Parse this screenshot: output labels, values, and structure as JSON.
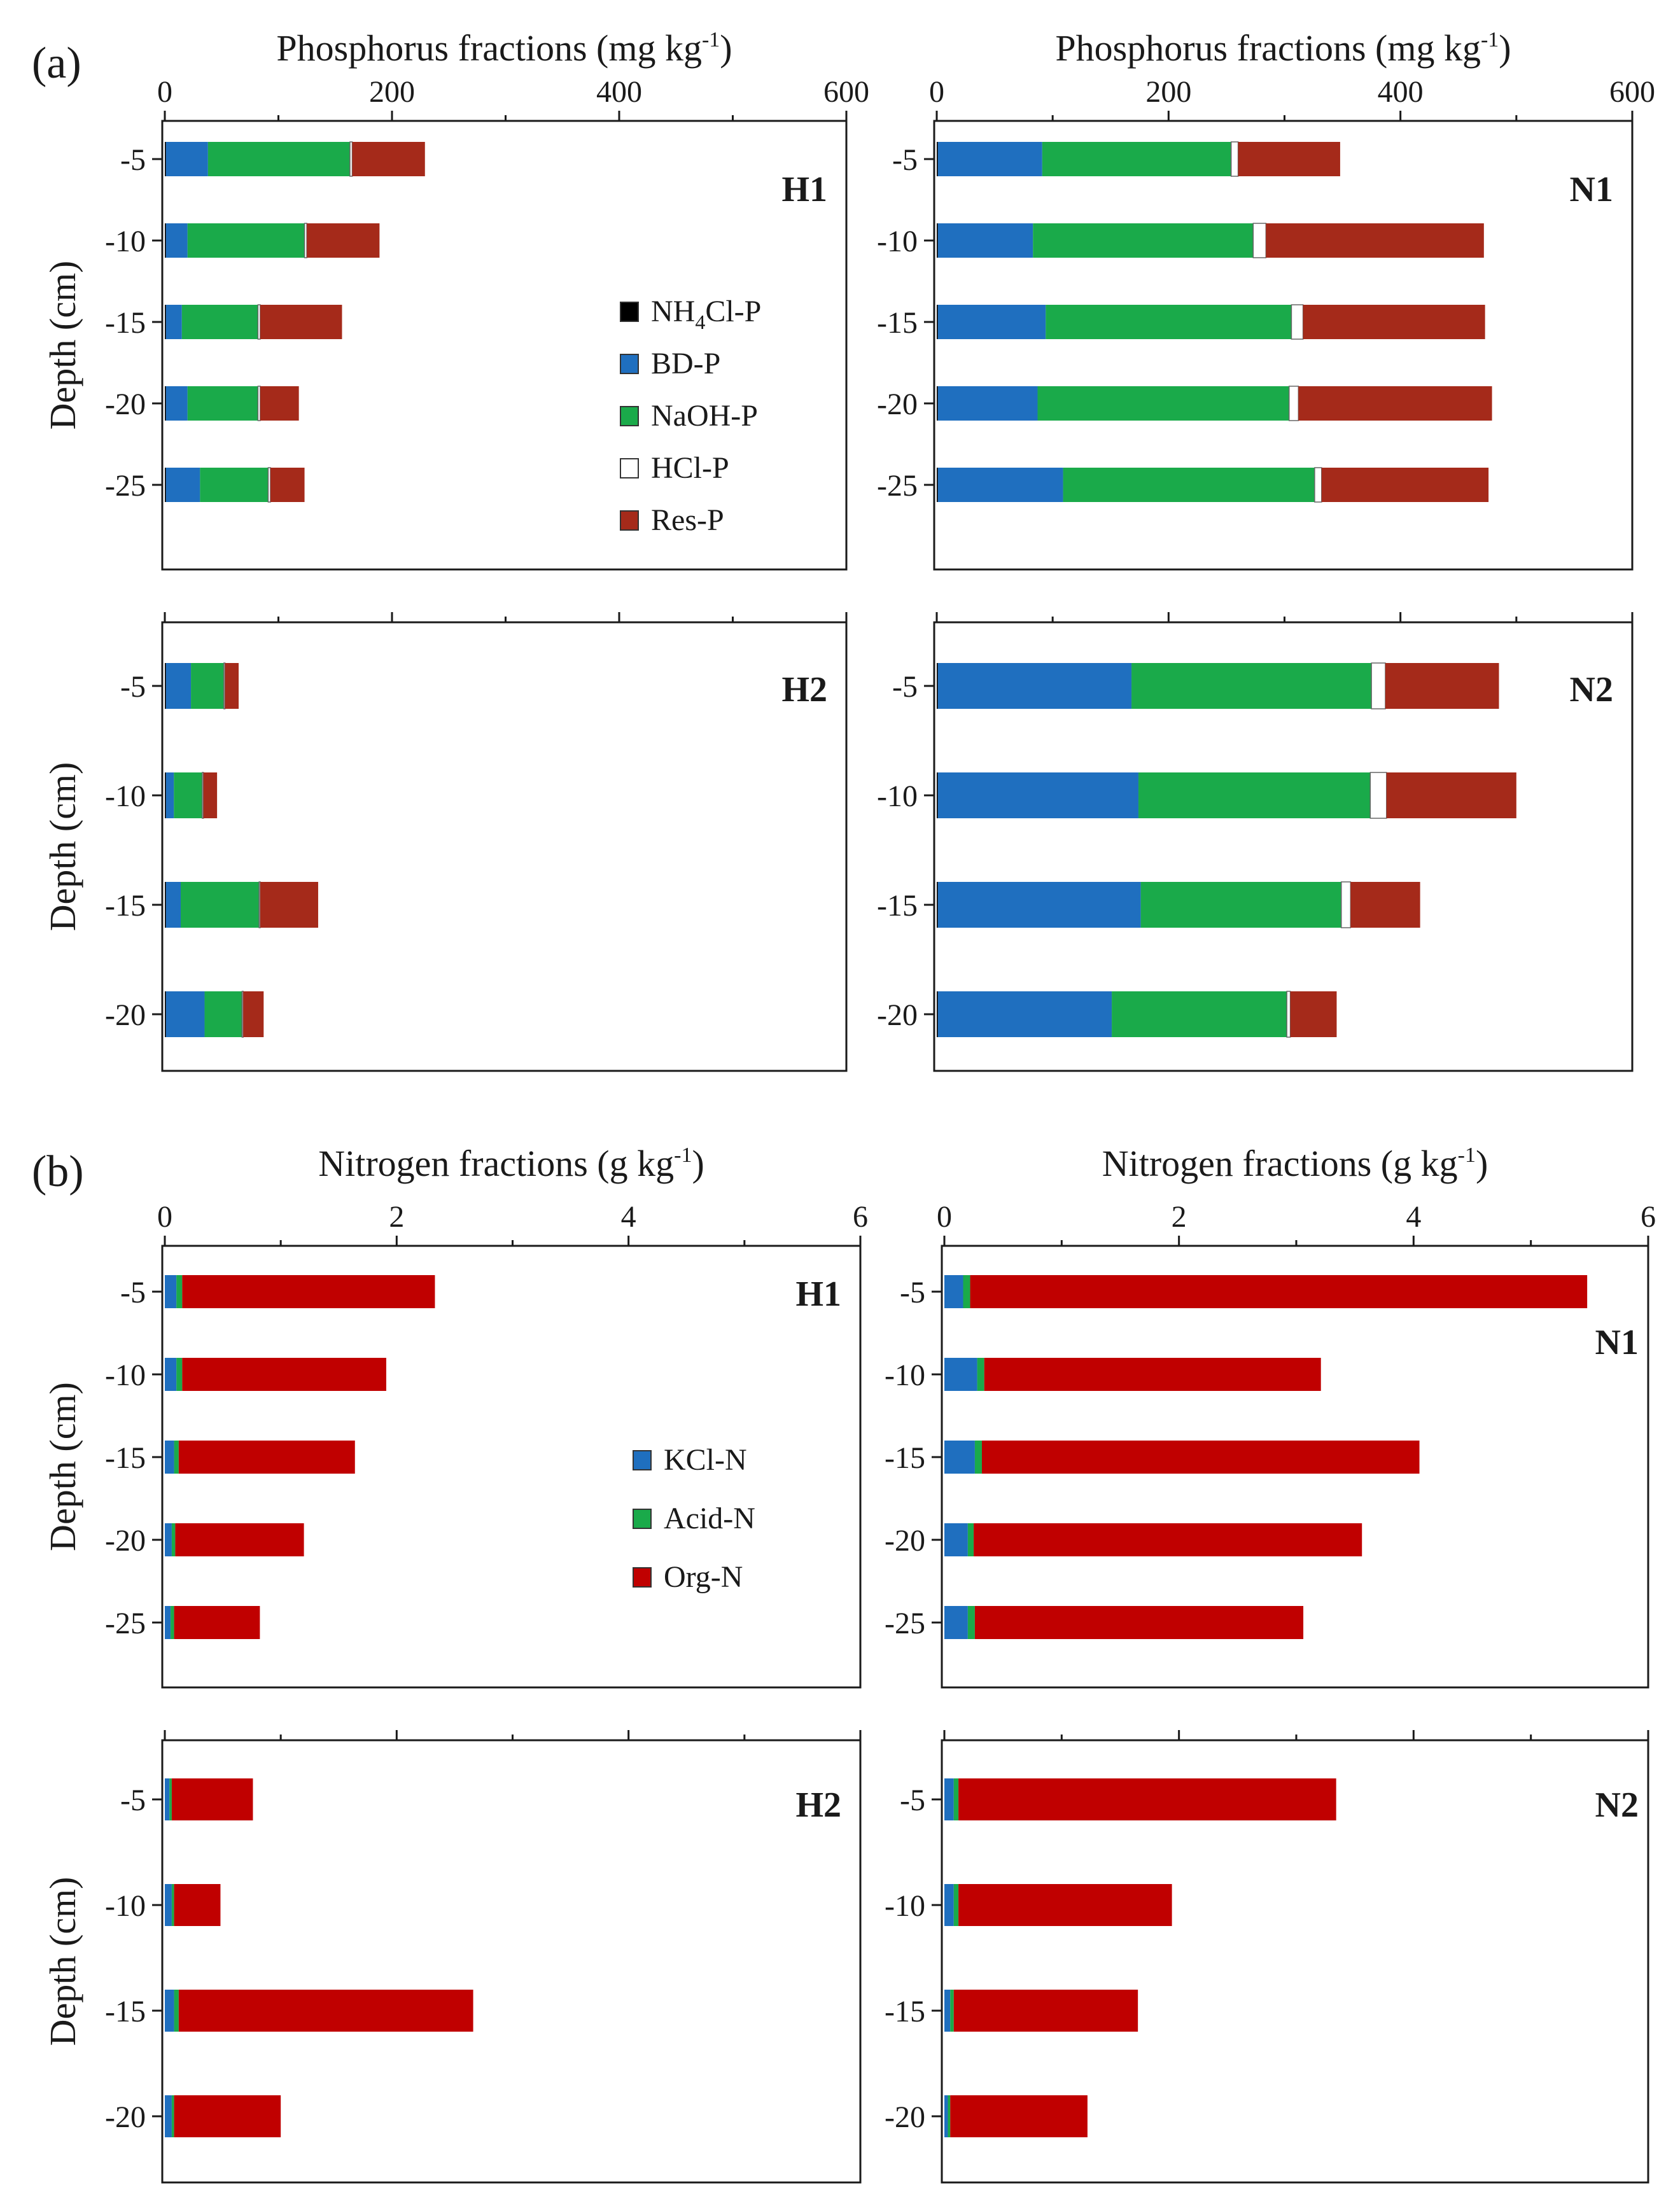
{
  "section_labels": {
    "a": "(a)",
    "b": "(b)"
  },
  "legends": {
    "phosphorus": [
      {
        "name": "NH4Cl-P",
        "main": "NH",
        "sub": "4",
        "rest": "Cl-P",
        "color": "#000000"
      },
      {
        "name": "BD-P",
        "main": "BD-P",
        "sub": "",
        "rest": "",
        "color": "#1f6fbf"
      },
      {
        "name": "NaOH-P",
        "main": "NaOH-P",
        "sub": "",
        "rest": "",
        "color": "#1aaa4a"
      },
      {
        "name": "HCl-P",
        "main": "HCl-P",
        "sub": "",
        "rest": "",
        "color": "#ffffff"
      },
      {
        "name": "Res-P",
        "main": "Res-P",
        "sub": "",
        "rest": "",
        "color": "#a52a1a"
      }
    ],
    "nitrogen": [
      {
        "name": "KCl-N",
        "main": "KCl-N",
        "sub": "",
        "rest": "",
        "color": "#1f6fbf"
      },
      {
        "name": "Acid-N",
        "main": "Acid-N",
        "sub": "",
        "rest": "",
        "color": "#1aaa4a"
      },
      {
        "name": "Org-N",
        "main": "Org-N",
        "sub": "",
        "rest": "",
        "color": "#c00000"
      }
    ]
  },
  "chart_data": [
    {
      "type": "bar",
      "id": "p-h1",
      "panel": "H1",
      "xlabel": "Phosphorus fractions (mg kg-1)",
      "xlabel_main": "Phosphorus fractions (mg kg",
      "xlabel_sup": "-1",
      "xlabel_end": ")",
      "ylabel": "Depth (cm)",
      "xlim": [
        0,
        600
      ],
      "xticks": [
        0,
        200,
        400,
        600
      ],
      "categories": [
        "-5",
        "-10",
        "-15",
        "-20",
        "-25"
      ],
      "series": [
        {
          "name": "NH4Cl-P",
          "color": "#000000",
          "values": [
            1,
            1,
            1,
            1,
            1
          ]
        },
        {
          "name": "BD-P",
          "color": "#1f6fbf",
          "values": [
            37,
            19,
            14,
            19,
            30
          ]
        },
        {
          "name": "NaOH-P",
          "color": "#1aaa4a",
          "values": [
            125,
            103,
            67,
            62,
            60
          ]
        },
        {
          "name": "HCl-P",
          "color": "#ffffff",
          "values": [
            2,
            2,
            2,
            2,
            2
          ]
        },
        {
          "name": "Res-P",
          "color": "#a52a1a",
          "values": [
            64,
            64,
            72,
            34,
            30
          ]
        }
      ]
    },
    {
      "type": "bar",
      "id": "p-n1",
      "panel": "N1",
      "xlabel": "Phosphorus fractions (mg kg-1)",
      "xlabel_main": "Phosphorus fractions (mg kg",
      "xlabel_sup": "-1",
      "xlabel_end": ")",
      "ylabel": "",
      "xlim": [
        0,
        600
      ],
      "xticks": [
        0,
        200,
        400,
        600
      ],
      "categories": [
        "-5",
        "-10",
        "-15",
        "-20",
        "-25"
      ],
      "series": [
        {
          "name": "NH4Cl-P",
          "color": "#000000",
          "values": [
            1,
            1,
            1,
            1,
            1
          ]
        },
        {
          "name": "BD-P",
          "color": "#1f6fbf",
          "values": [
            90,
            82,
            93,
            86,
            108
          ]
        },
        {
          "name": "NaOH-P",
          "color": "#1aaa4a",
          "values": [
            163,
            190,
            212,
            217,
            217
          ]
        },
        {
          "name": "HCl-P",
          "color": "#ffffff",
          "values": [
            6,
            11,
            10,
            8,
            6
          ]
        },
        {
          "name": "Res-P",
          "color": "#a52a1a",
          "values": [
            88,
            188,
            157,
            167,
            144
          ]
        }
      ]
    },
    {
      "type": "bar",
      "id": "p-h2",
      "panel": "H2",
      "xlabel": "",
      "ylabel": "Depth (cm)",
      "xlim": [
        0,
        600
      ],
      "xticks": [
        0,
        200,
        400,
        600
      ],
      "categories": [
        "-5",
        "-10",
        "-15",
        "-20"
      ],
      "series": [
        {
          "name": "NH4Cl-P",
          "color": "#000000",
          "values": [
            1,
            1,
            1,
            1
          ]
        },
        {
          "name": "BD-P",
          "color": "#1f6fbf",
          "values": [
            22,
            7,
            13,
            34
          ]
        },
        {
          "name": "NaOH-P",
          "color": "#1aaa4a",
          "values": [
            29,
            25,
            69,
            33
          ]
        },
        {
          "name": "HCl-P",
          "color": "#ffffff",
          "values": [
            1,
            1,
            1,
            1
          ]
        },
        {
          "name": "Res-P",
          "color": "#a52a1a",
          "values": [
            12,
            12,
            51,
            18
          ]
        }
      ]
    },
    {
      "type": "bar",
      "id": "p-n2",
      "panel": "N2",
      "xlabel": "",
      "ylabel": "",
      "xlim": [
        0,
        600
      ],
      "xticks": [
        0,
        200,
        400,
        600
      ],
      "categories": [
        "-5",
        "-10",
        "-15",
        "-20"
      ],
      "series": [
        {
          "name": "NH4Cl-P",
          "color": "#000000",
          "values": [
            1,
            1,
            1,
            1
          ]
        },
        {
          "name": "BD-P",
          "color": "#1f6fbf",
          "values": [
            167,
            173,
            175,
            150
          ]
        },
        {
          "name": "NaOH-P",
          "color": "#1aaa4a",
          "values": [
            207,
            200,
            173,
            151
          ]
        },
        {
          "name": "HCl-P",
          "color": "#ffffff",
          "values": [
            12,
            14,
            8,
            3
          ]
        },
        {
          "name": "Res-P",
          "color": "#a52a1a",
          "values": [
            98,
            112,
            60,
            40
          ]
        }
      ]
    },
    {
      "type": "bar",
      "id": "n-h1",
      "panel": "H1",
      "xlabel": "Nitrogen fractions (g kg-1)",
      "xlabel_main": "Nitrogen fractions (g kg",
      "xlabel_sup": "-1",
      "xlabel_end": ")",
      "ylabel": "Depth (cm)",
      "xlim": [
        0,
        6
      ],
      "xticks": [
        0,
        2,
        4,
        6
      ],
      "categories": [
        "-5",
        "-10",
        "-15",
        "-20",
        "-25"
      ],
      "series": [
        {
          "name": "KCl-N",
          "color": "#1f6fbf",
          "values": [
            0.1,
            0.1,
            0.08,
            0.06,
            0.05
          ]
        },
        {
          "name": "Acid-N",
          "color": "#1aaa4a",
          "values": [
            0.05,
            0.05,
            0.04,
            0.03,
            0.03
          ]
        },
        {
          "name": "Org-N",
          "color": "#c00000",
          "values": [
            2.18,
            1.76,
            1.52,
            1.11,
            0.74
          ]
        }
      ]
    },
    {
      "type": "bar",
      "id": "n-n1",
      "panel": "N1",
      "xlabel": "Nitrogen fractions (g kg-1)",
      "xlabel_main": "Nitrogen fractions (g kg",
      "xlabel_sup": "-1",
      "xlabel_end": ")",
      "ylabel": "",
      "xlim": [
        0,
        6
      ],
      "xticks": [
        0,
        2,
        4,
        6
      ],
      "categories": [
        "-5",
        "-10",
        "-15",
        "-20",
        "-25"
      ],
      "series": [
        {
          "name": "KCl-N",
          "color": "#1f6fbf",
          "values": [
            0.16,
            0.28,
            0.26,
            0.2,
            0.2
          ]
        },
        {
          "name": "Acid-N",
          "color": "#1aaa4a",
          "values": [
            0.06,
            0.06,
            0.06,
            0.05,
            0.06
          ]
        },
        {
          "name": "Org-N",
          "color": "#c00000",
          "values": [
            5.26,
            2.87,
            3.73,
            3.31,
            2.8
          ]
        }
      ]
    },
    {
      "type": "bar",
      "id": "n-h2",
      "panel": "H2",
      "xlabel": "",
      "ylabel": "Depth (cm)",
      "xlim": [
        0,
        6
      ],
      "xticks": [
        0,
        2,
        4,
        6
      ],
      "categories": [
        "-5",
        "-10",
        "-15",
        "-20"
      ],
      "series": [
        {
          "name": "KCl-N",
          "color": "#1f6fbf",
          "values": [
            0.04,
            0.06,
            0.08,
            0.06
          ]
        },
        {
          "name": "Acid-N",
          "color": "#1aaa4a",
          "values": [
            0.02,
            0.02,
            0.04,
            0.02
          ]
        },
        {
          "name": "Org-N",
          "color": "#c00000",
          "values": [
            0.7,
            0.4,
            2.54,
            0.92
          ]
        }
      ]
    },
    {
      "type": "bar",
      "id": "n-n2",
      "panel": "N2",
      "xlabel": "",
      "ylabel": "",
      "xlim": [
        0,
        6
      ],
      "xticks": [
        0,
        2,
        4,
        6
      ],
      "categories": [
        "-5",
        "-10",
        "-15",
        "-20"
      ],
      "series": [
        {
          "name": "KCl-N",
          "color": "#1f6fbf",
          "values": [
            0.08,
            0.08,
            0.05,
            0.03
          ]
        },
        {
          "name": "Acid-N",
          "color": "#1aaa4a",
          "values": [
            0.04,
            0.04,
            0.03,
            0.02
          ]
        },
        {
          "name": "Org-N",
          "color": "#c00000",
          "values": [
            3.22,
            1.82,
            1.57,
            1.17
          ]
        }
      ]
    }
  ]
}
